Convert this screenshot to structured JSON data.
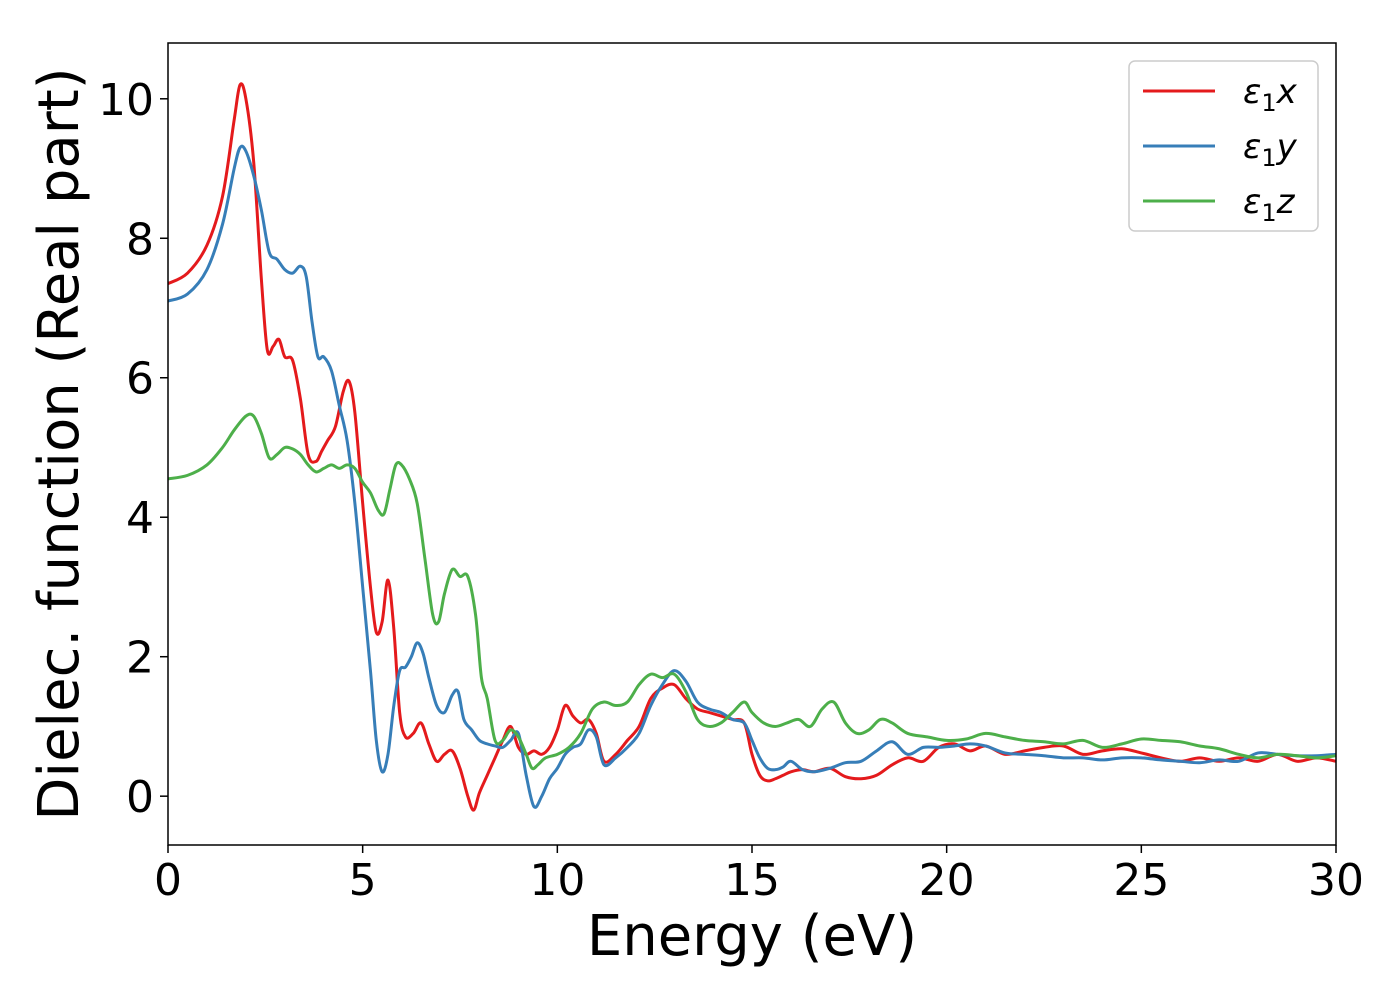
{
  "chart_data": {
    "type": "line",
    "title": "",
    "xlabel": "Energy (eV)",
    "ylabel": "Dielec. function (Real part)",
    "xlim": [
      0,
      30
    ],
    "ylim": [
      -0.7,
      10.8
    ],
    "xticks": [
      0,
      5,
      10,
      15,
      20,
      25,
      30
    ],
    "yticks": [
      0,
      2,
      4,
      6,
      8,
      10
    ],
    "grid": false,
    "legend_position": "top-right",
    "series": [
      {
        "name": "ε1x",
        "legend": {
          "sym": "ε",
          "sub": "1",
          "var": "x"
        },
        "color": "#e41a1c",
        "x": [
          0,
          0.5,
          1,
          1.4,
          1.7,
          1.85,
          2.0,
          2.2,
          2.4,
          2.55,
          2.7,
          2.85,
          3.0,
          3.2,
          3.4,
          3.6,
          3.8,
          3.95,
          4.1,
          4.3,
          4.5,
          4.65,
          4.8,
          5.0,
          5.2,
          5.35,
          5.5,
          5.65,
          5.8,
          5.95,
          6.1,
          6.3,
          6.5,
          6.7,
          6.9,
          7.1,
          7.3,
          7.5,
          7.7,
          7.85,
          8.0,
          8.2,
          8.4,
          8.6,
          8.8,
          9.0,
          9.2,
          9.4,
          9.6,
          9.8,
          10.0,
          10.2,
          10.4,
          10.6,
          10.8,
          11.0,
          11.2,
          11.5,
          11.8,
          12.1,
          12.4,
          12.7,
          13.0,
          13.3,
          13.6,
          13.9,
          14.2,
          14.5,
          14.8,
          15.0,
          15.2,
          15.4,
          15.6,
          15.8,
          16.0,
          16.3,
          16.6,
          17.0,
          17.4,
          17.8,
          18.2,
          18.6,
          19.0,
          19.4,
          19.8,
          20.2,
          20.6,
          21.0,
          21.5,
          22.0,
          22.5,
          23.0,
          23.5,
          24.0,
          24.5,
          25.0,
          25.5,
          26.0,
          26.5,
          27.0,
          27.5,
          28.0,
          28.5,
          29.0,
          29.5,
          30.0
        ],
        "values": [
          7.35,
          7.5,
          7.9,
          8.6,
          9.7,
          10.2,
          10.0,
          9.1,
          7.4,
          6.4,
          6.45,
          6.55,
          6.3,
          6.25,
          5.7,
          4.9,
          4.8,
          4.95,
          5.1,
          5.3,
          5.8,
          5.95,
          5.5,
          4.2,
          3.0,
          2.35,
          2.5,
          3.1,
          2.4,
          1.2,
          0.85,
          0.9,
          1.05,
          0.75,
          0.5,
          0.6,
          0.65,
          0.4,
          0.0,
          -0.2,
          0.05,
          0.3,
          0.55,
          0.8,
          1.0,
          0.7,
          0.6,
          0.65,
          0.6,
          0.7,
          0.95,
          1.3,
          1.15,
          1.05,
          1.1,
          0.9,
          0.5,
          0.6,
          0.8,
          1.0,
          1.4,
          1.55,
          1.6,
          1.4,
          1.25,
          1.2,
          1.15,
          1.1,
          1.05,
          0.6,
          0.3,
          0.22,
          0.25,
          0.3,
          0.35,
          0.38,
          0.35,
          0.4,
          0.28,
          0.25,
          0.3,
          0.45,
          0.55,
          0.5,
          0.7,
          0.75,
          0.65,
          0.72,
          0.6,
          0.65,
          0.7,
          0.72,
          0.6,
          0.65,
          0.68,
          0.62,
          0.55,
          0.5,
          0.55,
          0.5,
          0.55,
          0.5,
          0.6,
          0.5,
          0.55,
          0.5
        ]
      },
      {
        "name": "ε1y",
        "legend": {
          "sym": "ε",
          "sub": "1",
          "var": "y"
        },
        "color": "#377eb8",
        "x": [
          0,
          0.5,
          1,
          1.4,
          1.7,
          1.85,
          2.0,
          2.2,
          2.4,
          2.6,
          2.8,
          3.0,
          3.2,
          3.4,
          3.55,
          3.7,
          3.85,
          4.0,
          4.2,
          4.4,
          4.6,
          4.8,
          5.0,
          5.2,
          5.35,
          5.5,
          5.65,
          5.8,
          5.95,
          6.1,
          6.25,
          6.4,
          6.55,
          6.7,
          6.9,
          7.1,
          7.3,
          7.45,
          7.6,
          7.8,
          8.0,
          8.2,
          8.4,
          8.6,
          8.8,
          9.0,
          9.2,
          9.4,
          9.6,
          9.8,
          10.0,
          10.2,
          10.4,
          10.6,
          10.8,
          11.0,
          11.2,
          11.5,
          11.8,
          12.1,
          12.4,
          12.7,
          13.0,
          13.3,
          13.6,
          13.9,
          14.2,
          14.5,
          14.8,
          15.0,
          15.2,
          15.4,
          15.6,
          15.8,
          16.0,
          16.3,
          16.6,
          17.0,
          17.4,
          17.8,
          18.2,
          18.6,
          19.0,
          19.4,
          19.8,
          20.2,
          20.6,
          21.0,
          21.5,
          22.0,
          22.5,
          23.0,
          23.5,
          24.0,
          24.5,
          25.0,
          25.5,
          26.0,
          26.5,
          27.0,
          27.5,
          28.0,
          28.5,
          29.0,
          29.5,
          30.0
        ],
        "values": [
          7.1,
          7.2,
          7.55,
          8.2,
          9.0,
          9.3,
          9.25,
          8.9,
          8.4,
          7.8,
          7.7,
          7.55,
          7.5,
          7.6,
          7.45,
          6.8,
          6.3,
          6.3,
          6.1,
          5.6,
          5.1,
          4.2,
          3.0,
          1.8,
          0.8,
          0.35,
          0.6,
          1.3,
          1.8,
          1.85,
          2.0,
          2.2,
          2.05,
          1.7,
          1.3,
          1.2,
          1.45,
          1.5,
          1.1,
          0.95,
          0.8,
          0.75,
          0.72,
          0.7,
          0.8,
          0.9,
          0.3,
          -0.15,
          0.0,
          0.25,
          0.4,
          0.6,
          0.7,
          0.75,
          0.95,
          0.85,
          0.45,
          0.55,
          0.7,
          0.9,
          1.3,
          1.6,
          1.8,
          1.65,
          1.35,
          1.25,
          1.2,
          1.1,
          1.05,
          0.8,
          0.55,
          0.4,
          0.38,
          0.42,
          0.5,
          0.38,
          0.35,
          0.4,
          0.48,
          0.5,
          0.65,
          0.78,
          0.6,
          0.7,
          0.7,
          0.72,
          0.75,
          0.72,
          0.62,
          0.6,
          0.58,
          0.55,
          0.55,
          0.52,
          0.55,
          0.55,
          0.52,
          0.5,
          0.48,
          0.52,
          0.5,
          0.62,
          0.6,
          0.58,
          0.58,
          0.6
        ]
      },
      {
        "name": "ε1z",
        "legend": {
          "sym": "ε",
          "sub": "1",
          "var": "z"
        },
        "color": "#4daf4a",
        "x": [
          0,
          0.5,
          1,
          1.4,
          1.7,
          2.0,
          2.2,
          2.4,
          2.6,
          2.8,
          3.0,
          3.2,
          3.4,
          3.6,
          3.8,
          4.0,
          4.2,
          4.4,
          4.6,
          4.8,
          5.0,
          5.2,
          5.4,
          5.55,
          5.7,
          5.85,
          6.0,
          6.2,
          6.4,
          6.6,
          6.8,
          6.95,
          7.1,
          7.3,
          7.5,
          7.7,
          7.9,
          8.05,
          8.2,
          8.4,
          8.6,
          8.8,
          9.0,
          9.2,
          9.35,
          9.5,
          9.7,
          10.0,
          10.3,
          10.6,
          10.9,
          11.2,
          11.5,
          11.8,
          12.1,
          12.4,
          12.7,
          13.0,
          13.3,
          13.6,
          13.9,
          14.2,
          14.5,
          14.8,
          15.0,
          15.3,
          15.6,
          15.9,
          16.2,
          16.5,
          16.8,
          17.1,
          17.4,
          17.7,
          18.0,
          18.3,
          18.6,
          19.0,
          19.5,
          20.0,
          20.5,
          21.0,
          21.5,
          22.0,
          22.5,
          23.0,
          23.5,
          24.0,
          24.5,
          25.0,
          25.5,
          26.0,
          26.5,
          27.0,
          27.5,
          28.0,
          28.5,
          29.0,
          29.5,
          30.0
        ],
        "values": [
          4.55,
          4.6,
          4.75,
          5.0,
          5.25,
          5.45,
          5.45,
          5.2,
          4.85,
          4.9,
          5.0,
          4.98,
          4.9,
          4.75,
          4.65,
          4.7,
          4.75,
          4.7,
          4.75,
          4.7,
          4.5,
          4.35,
          4.1,
          4.05,
          4.4,
          4.75,
          4.75,
          4.55,
          4.2,
          3.4,
          2.6,
          2.5,
          2.9,
          3.25,
          3.15,
          3.15,
          2.6,
          1.7,
          1.4,
          0.8,
          0.8,
          0.95,
          0.85,
          0.6,
          0.4,
          0.45,
          0.55,
          0.6,
          0.7,
          0.9,
          1.25,
          1.35,
          1.3,
          1.35,
          1.6,
          1.75,
          1.7,
          1.75,
          1.5,
          1.1,
          1.0,
          1.05,
          1.2,
          1.35,
          1.2,
          1.05,
          1.0,
          1.05,
          1.1,
          1.0,
          1.25,
          1.35,
          1.05,
          0.9,
          0.95,
          1.1,
          1.05,
          0.9,
          0.85,
          0.8,
          0.82,
          0.9,
          0.85,
          0.8,
          0.78,
          0.75,
          0.8,
          0.7,
          0.75,
          0.82,
          0.8,
          0.78,
          0.72,
          0.68,
          0.6,
          0.55,
          0.6,
          0.58,
          0.55,
          0.58
        ]
      }
    ]
  }
}
